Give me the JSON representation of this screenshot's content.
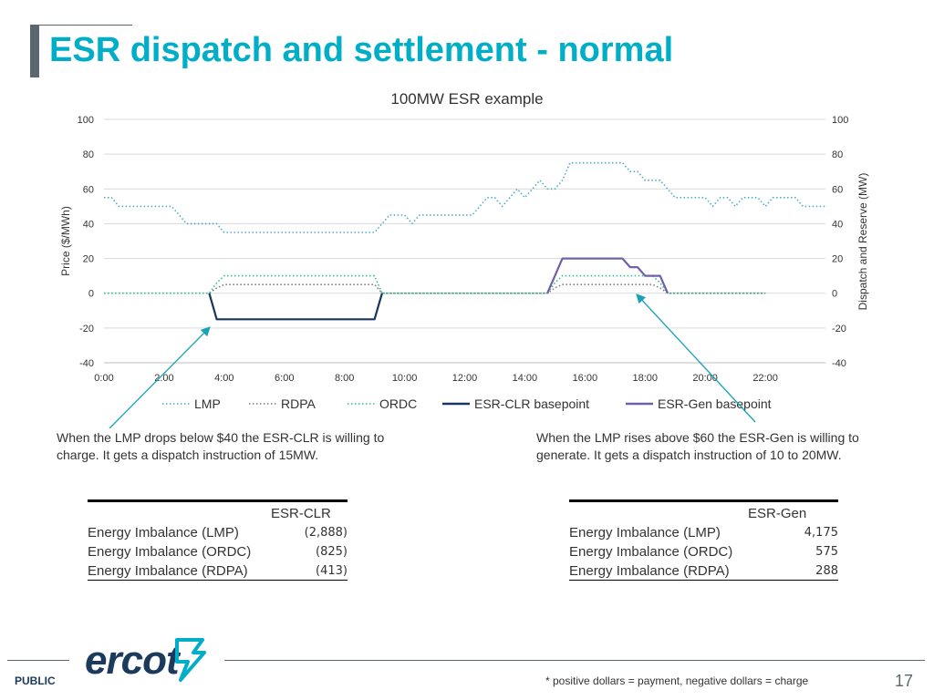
{
  "page": {
    "title": "ESR dispatch and settlement - normal",
    "public_label": "PUBLIC",
    "logo_text": "ercot",
    "footnote": "* positive dollars = payment, negative dollars = charge",
    "page_number": "17"
  },
  "notes": {
    "left": "When the LMP drops below $40 the ESR-CLR is willing to charge. It gets a dispatch instruction of 15MW.",
    "right": "When the LMP rises above $60 the ESR-Gen is willing to generate. It gets a dispatch instruction of 10 to 20MW."
  },
  "tables": {
    "clr": {
      "header": "ESR-CLR",
      "rows": [
        {
          "label": "Energy Imbalance (LMP)",
          "value": "(2,888)"
        },
        {
          "label": "Energy Imbalance (ORDC)",
          "value": "(825)"
        },
        {
          "label": "Energy Imbalance (RDPA)",
          "value": "(413)"
        }
      ]
    },
    "gen": {
      "header": "ESR-Gen",
      "rows": [
        {
          "label": "Energy Imbalance (LMP)",
          "value": "4,175"
        },
        {
          "label": "Energy Imbalance (ORDC)",
          "value": "575"
        },
        {
          "label": "Energy Imbalance (RDPA)",
          "value": "288"
        }
      ]
    }
  },
  "chart_data": {
    "type": "line",
    "title": "100MW ESR example",
    "ylabel": "Price ($/MWh)",
    "y2label": "Dispatch and Reserve (MW)",
    "ylim": [
      -40,
      100
    ],
    "y2lim": [
      -40,
      100
    ],
    "yticks": [
      -40,
      -20,
      0,
      20,
      40,
      60,
      80,
      100
    ],
    "xlim": [
      0,
      24
    ],
    "xticks": [
      0,
      2,
      4,
      6,
      8,
      10,
      12,
      14,
      16,
      18,
      20,
      22
    ],
    "xtick_labels": [
      "0:00",
      "2:00",
      "4:00",
      "6:00",
      "8:00",
      "10:00",
      "12:00",
      "14:00",
      "16:00",
      "18:00",
      "20:00",
      "22:00"
    ],
    "grid": true,
    "legend_position": "bottom",
    "colors": {
      "LMP": "#4bacc6",
      "RDPA": "#7f7f7f",
      "ORDC": "#2fbf8f",
      "ESR-CLR basepoint": "#17375e",
      "ESR-Gen basepoint": "#7060a8",
      "grid": "#d9d9d9",
      "annotation": "#1aa3b8"
    },
    "series": [
      {
        "name": "LMP",
        "style": "dotted",
        "x": [
          0,
          0.25,
          0.5,
          2.25,
          2.75,
          3.75,
          4.0,
          9.0,
          9.25,
          9.5,
          10.0,
          10.25,
          10.5,
          10.75,
          11.25,
          11.5,
          12.25,
          12.5,
          12.75,
          13.0,
          13.25,
          13.5,
          13.75,
          14.0,
          14.25,
          14.5,
          14.75,
          15.0,
          15.25,
          15.5,
          17.25,
          17.5,
          17.75,
          18.0,
          18.25,
          18.5,
          18.75,
          19.0,
          19.25,
          19.75,
          20.0,
          20.25,
          20.5,
          20.75,
          21.0,
          21.25,
          21.75,
          22.0,
          22.25,
          22.5,
          23.0,
          23.25,
          23.5,
          24.0
        ],
        "values": [
          55,
          55,
          50,
          50,
          40,
          40,
          35,
          35,
          40,
          45,
          45,
          40,
          45,
          45,
          45,
          45,
          45,
          50,
          55,
          55,
          50,
          55,
          60,
          55,
          60,
          65,
          60,
          60,
          65,
          75,
          75,
          70,
          70,
          65,
          65,
          65,
          60,
          55,
          55,
          55,
          55,
          50,
          55,
          55,
          50,
          55,
          55,
          50,
          55,
          55,
          55,
          50,
          50,
          50
        ]
      },
      {
        "name": "RDPA",
        "style": "dotted",
        "x": [
          0,
          3.5,
          3.75,
          4.0,
          8.75,
          9.0,
          9.25,
          14.75,
          15.0,
          15.25,
          18.25,
          18.5,
          18.75,
          22.0
        ],
        "values": [
          0,
          0,
          3,
          5,
          5,
          5,
          0,
          0,
          3,
          5,
          5,
          3,
          0,
          0
        ]
      },
      {
        "name": "ORDC",
        "style": "dotted",
        "x": [
          0,
          3.5,
          3.75,
          4.0,
          8.75,
          9.0,
          9.25,
          14.75,
          15.0,
          15.25,
          18.25,
          18.5,
          18.75,
          22.0
        ],
        "values": [
          0,
          0,
          6,
          10,
          10,
          10,
          0,
          0,
          6,
          10,
          10,
          6,
          0,
          0
        ]
      },
      {
        "name": "ESR-CLR basepoint",
        "style": "solid",
        "x": [
          3.5,
          3.75,
          4.0,
          8.75,
          9.0,
          9.25
        ],
        "values": [
          0,
          -15,
          -15,
          -15,
          -15,
          0
        ]
      },
      {
        "name": "ESR-Gen basepoint",
        "style": "solid",
        "x": [
          14.75,
          15.0,
          15.25,
          15.5,
          17.25,
          17.5,
          17.75,
          18.0,
          18.25,
          18.5,
          18.75
        ],
        "values": [
          0,
          10,
          20,
          20,
          20,
          15,
          15,
          10,
          10,
          10,
          0
        ]
      }
    ]
  }
}
